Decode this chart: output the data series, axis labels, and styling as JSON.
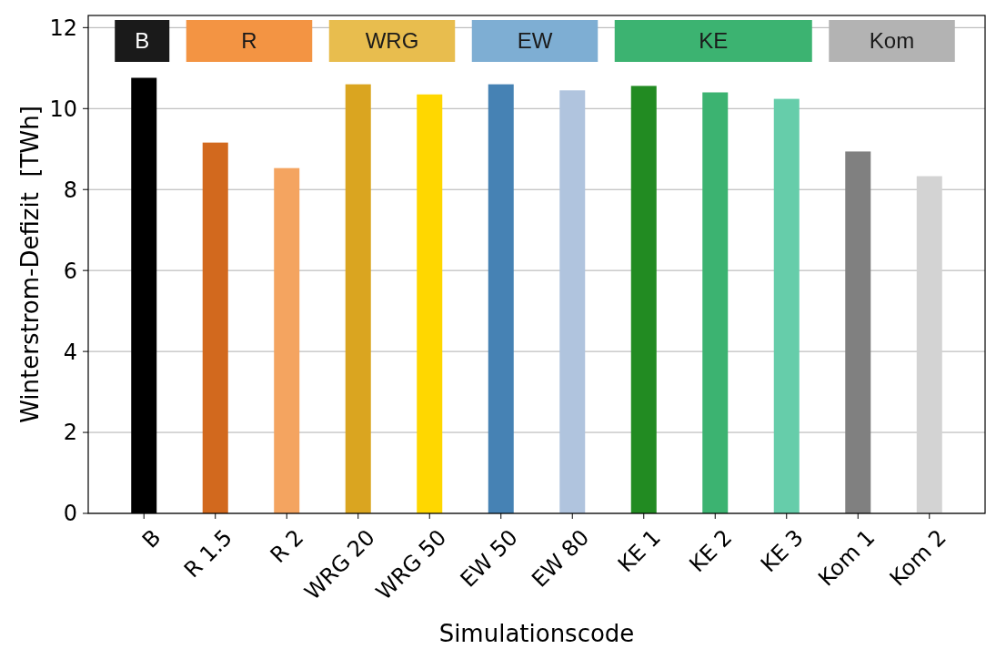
{
  "chart_data": {
    "type": "bar",
    "xlabel": "Simulationscode",
    "ylabel": "Winterstrom-Defizit  [TWh]",
    "categories": [
      "B",
      "R 1.5",
      "R 2",
      "WRG 20",
      "WRG 50",
      "EW 50",
      "EW 80",
      "KE 1",
      "KE 2",
      "KE 3",
      "Kom 1",
      "Kom 2"
    ],
    "series": [
      {
        "color": "#1a1a1a",
        "colors": [
          "#000000",
          null,
          null,
          null,
          null,
          null,
          null,
          null,
          null,
          null,
          null,
          null
        ],
        "values": [
          10.76,
          null,
          null,
          null,
          null,
          null,
          null,
          null,
          null,
          null,
          null,
          null
        ]
      },
      {
        "color": "#f39443",
        "colors": [
          null,
          "#d2691e",
          "#f4a460",
          null,
          null,
          null,
          null,
          null,
          null,
          null,
          null,
          null
        ],
        "values": [
          null,
          9.16,
          8.53,
          null,
          null,
          null,
          null,
          null,
          null,
          null,
          null,
          null
        ]
      },
      {
        "color": "#e8bd4e",
        "colors": [
          null,
          null,
          null,
          "#daa520",
          "#ffd700",
          null,
          null,
          null,
          null,
          null,
          null,
          null
        ],
        "values": [
          null,
          null,
          null,
          10.6,
          10.35,
          null,
          null,
          null,
          null,
          null,
          null,
          null
        ]
      },
      {
        "color": "#7eaed3",
        "colors": [
          null,
          null,
          null,
          null,
          null,
          "#4682b4",
          "#b0c4de",
          null,
          null,
          null,
          null,
          null
        ],
        "values": [
          null,
          null,
          null,
          null,
          null,
          10.6,
          10.45,
          null,
          null,
          null,
          null,
          null
        ]
      },
      {
        "color": "#3cb371",
        "colors": [
          null,
          null,
          null,
          null,
          null,
          null,
          null,
          "#228b22",
          "#3cb371",
          "#66cdaa",
          null,
          null
        ],
        "values": [
          null,
          null,
          null,
          null,
          null,
          null,
          null,
          10.56,
          10.4,
          10.24,
          null,
          null
        ]
      },
      {
        "color": "#b3b3b3",
        "colors": [
          null,
          null,
          null,
          null,
          null,
          null,
          null,
          null,
          null,
          null,
          "#808080",
          "#d3d3d3"
        ],
        "values": [
          null,
          null,
          null,
          null,
          null,
          null,
          null,
          null,
          null,
          null,
          8.94,
          8.33
        ]
      }
    ],
    "annotations": [
      "B",
      "R",
      "WRG",
      "EW",
      "KE",
      "Kom"
    ],
    "ylim": [
      0,
      12.3
    ],
    "yticks": [
      0,
      2,
      4,
      6,
      8,
      10,
      12
    ],
    "grid": "y"
  }
}
